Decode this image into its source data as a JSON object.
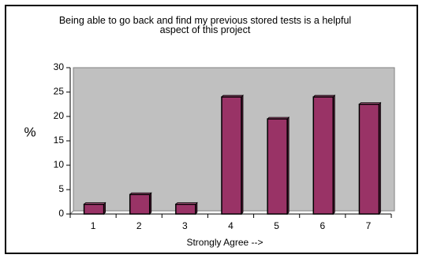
{
  "chart_data": {
    "type": "bar",
    "title": "Being able to go back and find my previous stored tests is a helpful aspect of this project",
    "xlabel": "Strongly Agree -->",
    "ylabel": "%",
    "categories": [
      "1",
      "2",
      "3",
      "4",
      "5",
      "6",
      "7"
    ],
    "series": [
      {
        "values": [
          2,
          4,
          2,
          24,
          19.5,
          24,
          22.5
        ]
      }
    ],
    "ylim": [
      0,
      30
    ],
    "yticks": [
      "0",
      "5",
      "10",
      "15",
      "20",
      "25",
      "30"
    ],
    "grid": false,
    "legend": "none",
    "colors": {
      "bar": "#993366",
      "plot_background": "#c0c0c0",
      "axis": "#000000"
    }
  }
}
